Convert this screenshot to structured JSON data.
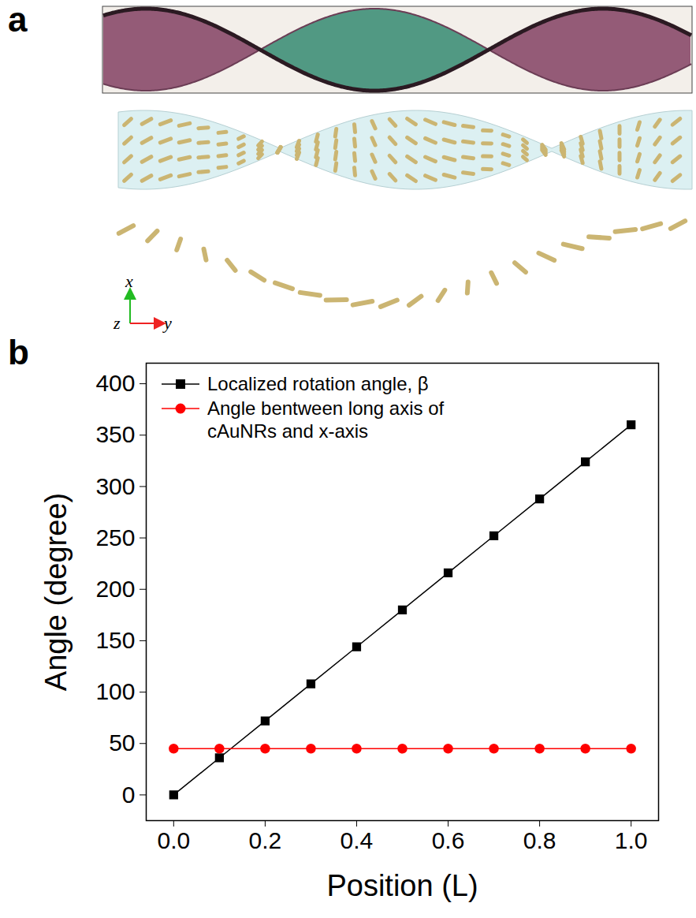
{
  "panel_a": {
    "label": "a",
    "axes": {
      "vertical": "x",
      "out_of_page": "z",
      "horizontal": "y"
    }
  },
  "chart_data": {
    "type": "line",
    "panel_label": "b",
    "x_label": "Position (L)",
    "y_label": "Angle (degree)",
    "x": [
      0.0,
      0.1,
      0.2,
      0.3,
      0.4,
      0.5,
      0.6,
      0.7,
      0.8,
      0.9,
      1.0
    ],
    "series": [
      {
        "name": "Localized rotation angle, β",
        "color": "#000000",
        "marker": "square",
        "line_style": "solid",
        "values": [
          0,
          36,
          72,
          108,
          144,
          180,
          216,
          252,
          288,
          324,
          360
        ]
      },
      {
        "name": "Angle bentween long axis of cAuNRs and x-axis",
        "color": "#ff0000",
        "marker": "circle",
        "line_style": "solid",
        "values": [
          45,
          45,
          45,
          45,
          45,
          45,
          45,
          45,
          45,
          45,
          45
        ]
      }
    ],
    "xlim": [
      -0.06,
      1.06
    ],
    "xticks": [
      {
        "value": 0,
        "label": "0.0"
      },
      {
        "value": 0.2,
        "label": "0.2"
      },
      {
        "value": 0.4,
        "label": "0.4"
      },
      {
        "value": 0.6,
        "label": "0.6"
      },
      {
        "value": 0.8,
        "label": "0.8"
      },
      {
        "value": 1,
        "label": "1.0"
      }
    ],
    "ylim": [
      -25,
      420
    ],
    "yticks": [
      0,
      50,
      100,
      150,
      200,
      250,
      300,
      350,
      400
    ],
    "grid": false,
    "legend": "upper left"
  }
}
